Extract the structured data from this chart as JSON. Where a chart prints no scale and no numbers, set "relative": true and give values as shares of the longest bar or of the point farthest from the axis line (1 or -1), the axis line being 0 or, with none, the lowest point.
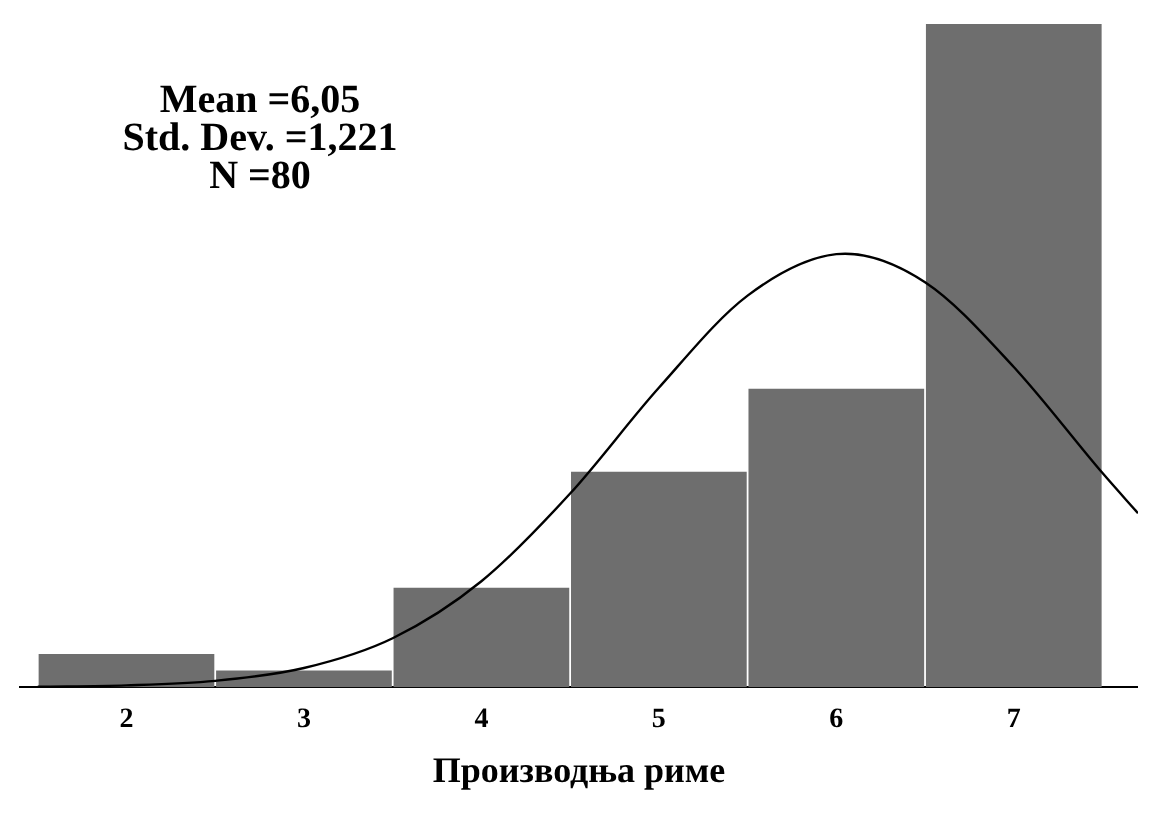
{
  "chart_data": {
    "type": "histogram",
    "xlabel": "Производња риме",
    "bins": [
      1.5,
      2.5,
      3.5,
      4.5,
      5.5,
      6.5,
      7.5
    ],
    "values": [
      0.05,
      0.025,
      0.15,
      0.325,
      0.45,
      1
    ],
    "color": "#6e6e6e",
    "relative": true,
    "xlim": [
      1.4,
      7.7
    ],
    "xticks": [
      2,
      3,
      4,
      5,
      6,
      7
    ],
    "grid": false,
    "series": [
      {
        "type": "line",
        "color": "#000000",
        "marker": "none",
        "x": [
          1.5,
          2,
          2.5,
          3,
          3.5,
          4,
          4.5,
          5,
          5.5,
          6,
          6.05,
          6.5,
          7,
          7.5,
          7.7
        ],
        "values": [
          0.0006,
          0.0027,
          0.0096,
          0.0289,
          0.0738,
          0.1597,
          0.292,
          0.4515,
          0.5904,
          0.653,
          0.6535,
          0.6106,
          0.4828,
          0.3229,
          0.2623
        ]
      }
    ],
    "annotations": [
      "Mean =6,05",
      "Std. Dev. =1,221",
      "N =80"
    ]
  }
}
